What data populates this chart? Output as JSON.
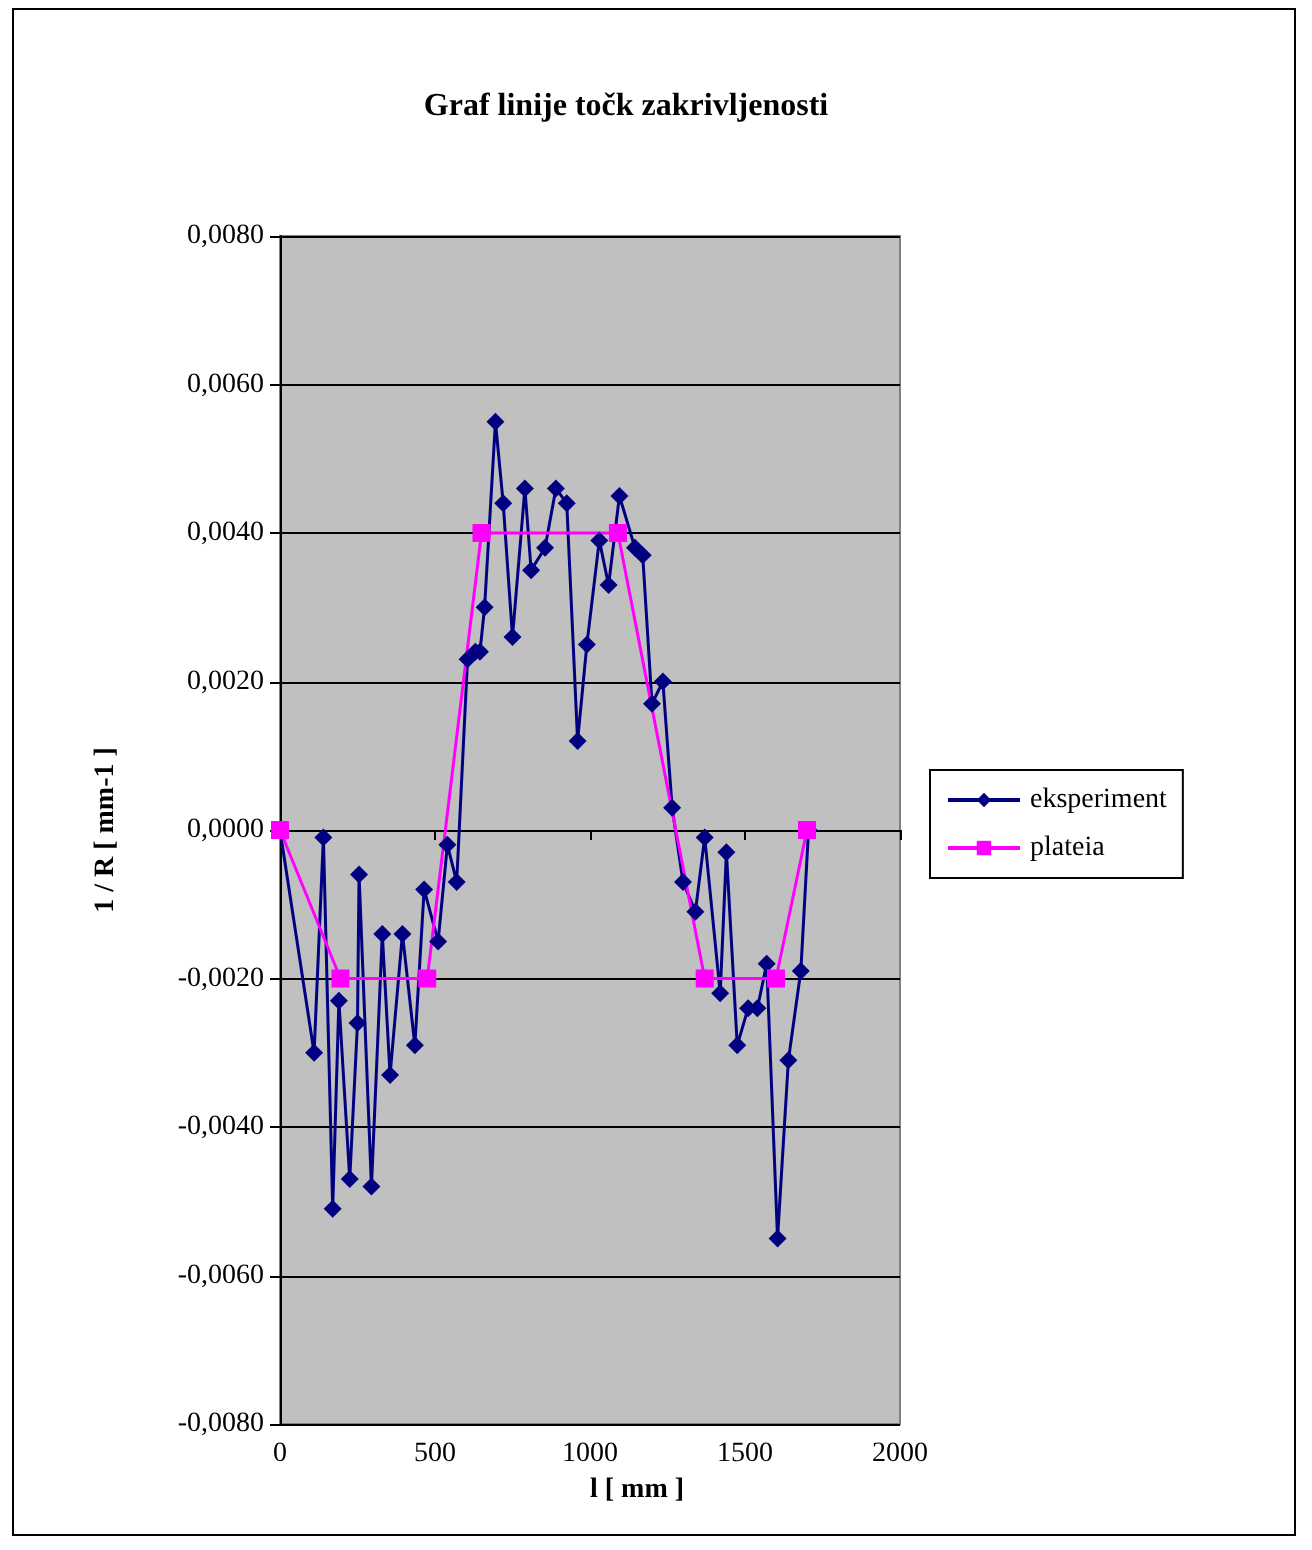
{
  "chart_data": {
    "type": "line",
    "title": "Graf linije točk zakrivljenosti",
    "xlabel": "l [ mm ]",
    "ylabel": "1 / R [ mm-1 ]",
    "xlim": [
      0,
      2000
    ],
    "xticks": [
      0,
      500,
      1000,
      1500,
      2000
    ],
    "ylim": [
      -0.008,
      0.008
    ],
    "yticks": [
      {
        "value": -0.008,
        "label": "-0,0080"
      },
      {
        "value": -0.006,
        "label": "-0,0060"
      },
      {
        "value": -0.004,
        "label": "-0,0040"
      },
      {
        "value": -0.002,
        "label": "-0,0020"
      },
      {
        "value": 0,
        "label": "0,0000"
      },
      {
        "value": 0.002,
        "label": "0,0020"
      },
      {
        "value": 0.004,
        "label": "0,0040"
      },
      {
        "value": 0.006,
        "label": "0,0060"
      },
      {
        "value": 0.008,
        "label": "0,0080"
      }
    ],
    "grid": "y",
    "legend": "right",
    "series": [
      {
        "name": "eksperiment",
        "color": "#000080",
        "marker": "diamond",
        "x": [
          0,
          110,
          140,
          170,
          190,
          225,
          250,
          255,
          295,
          330,
          355,
          395,
          435,
          465,
          510,
          540,
          570,
          605,
          630,
          645,
          660,
          695,
          720,
          750,
          790,
          810,
          855,
          890,
          925,
          960,
          990,
          1030,
          1060,
          1095,
          1145,
          1170,
          1200,
          1235,
          1265,
          1300,
          1340,
          1370,
          1420,
          1440,
          1475,
          1510,
          1540,
          1570,
          1605,
          1640,
          1680,
          1705
        ],
        "values": [
          0,
          -0.003,
          -0.0001,
          -0.0051,
          -0.0023,
          -0.0047,
          -0.0026,
          -0.0006,
          -0.0048,
          -0.0014,
          -0.0033,
          -0.0014,
          -0.0029,
          -0.0008,
          -0.0015,
          -0.0002,
          -0.0007,
          0.0023,
          0.0024,
          0.0024,
          0.003,
          0.0055,
          0.0044,
          0.0026,
          0.0046,
          0.0035,
          0.0038,
          0.0046,
          0.0044,
          0.0012,
          0.0025,
          0.0039,
          0.0033,
          0.0045,
          0.0038,
          0.0037,
          0.0017,
          0.002,
          0.0003,
          -0.0007,
          -0.0011,
          -0.0001,
          -0.0022,
          -0.0003,
          -0.0029,
          -0.0024,
          -0.0024,
          -0.0018,
          -0.0055,
          -0.0031,
          -0.0019,
          0
        ]
      },
      {
        "name": "plateia",
        "color": "#ff00ff",
        "marker": "square",
        "x": [
          0,
          195,
          475,
          650,
          1090,
          1370,
          1600,
          1700
        ],
        "values": [
          0,
          -0.002,
          -0.002,
          0.004,
          0.004,
          -0.002,
          -0.002,
          0
        ]
      }
    ]
  }
}
